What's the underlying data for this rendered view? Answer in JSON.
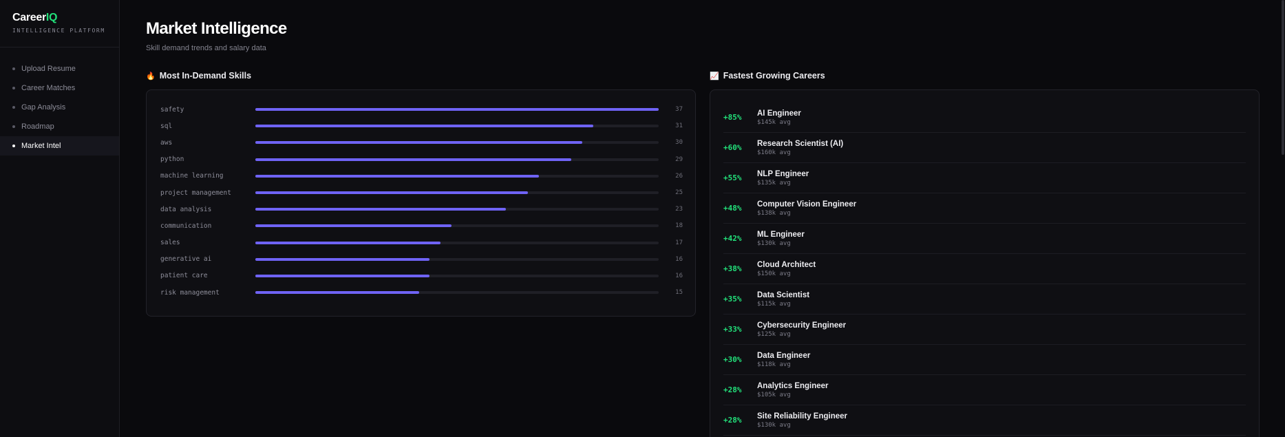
{
  "brand": {
    "logo_main": "Career",
    "logo_accent": "IQ",
    "subtitle": "INTELLIGENCE PLATFORM"
  },
  "nav": {
    "items": [
      {
        "label": "Upload Resume",
        "active": false
      },
      {
        "label": "Career Matches",
        "active": false
      },
      {
        "label": "Gap Analysis",
        "active": false
      },
      {
        "label": "Roadmap",
        "active": false
      },
      {
        "label": "Market Intel",
        "active": true
      }
    ]
  },
  "page": {
    "title": "Market Intelligence",
    "subtitle": "Skill demand trends and salary data"
  },
  "skills_section": {
    "icon": "fire-icon",
    "emoji": "🔥",
    "title": "Most In-Demand Skills",
    "max": 37,
    "bar_color": "#6f63f5",
    "items": [
      {
        "label": "safety",
        "count": 37
      },
      {
        "label": "sql",
        "count": 31
      },
      {
        "label": "aws",
        "count": 30
      },
      {
        "label": "python",
        "count": 29
      },
      {
        "label": "machine learning",
        "count": 26
      },
      {
        "label": "project management",
        "count": 25
      },
      {
        "label": "data analysis",
        "count": 23
      },
      {
        "label": "communication",
        "count": 18
      },
      {
        "label": "sales",
        "count": 17
      },
      {
        "label": "generative ai",
        "count": 16
      },
      {
        "label": "patient care",
        "count": 16
      },
      {
        "label": "risk management",
        "count": 15
      }
    ]
  },
  "careers_section": {
    "icon": "chart-increasing-icon",
    "emoji": "📈",
    "title": "Fastest Growing Careers",
    "growth_color": "#22e07a",
    "items": [
      {
        "growth": "+85%",
        "name": "AI Engineer",
        "salary": "$145k avg"
      },
      {
        "growth": "+60%",
        "name": "Research Scientist (AI)",
        "salary": "$160k avg"
      },
      {
        "growth": "+55%",
        "name": "NLP Engineer",
        "salary": "$135k avg"
      },
      {
        "growth": "+48%",
        "name": "Computer Vision Engineer",
        "salary": "$138k avg"
      },
      {
        "growth": "+42%",
        "name": "ML Engineer",
        "salary": "$130k avg"
      },
      {
        "growth": "+38%",
        "name": "Cloud Architect",
        "salary": "$150k avg"
      },
      {
        "growth": "+35%",
        "name": "Data Scientist",
        "salary": "$115k avg"
      },
      {
        "growth": "+33%",
        "name": "Cybersecurity Engineer",
        "salary": "$125k avg"
      },
      {
        "growth": "+30%",
        "name": "Data Engineer",
        "salary": "$118k avg"
      },
      {
        "growth": "+28%",
        "name": "Analytics Engineer",
        "salary": "$105k avg"
      },
      {
        "growth": "+28%",
        "name": "Site Reliability Engineer",
        "salary": "$130k avg"
      }
    ]
  }
}
